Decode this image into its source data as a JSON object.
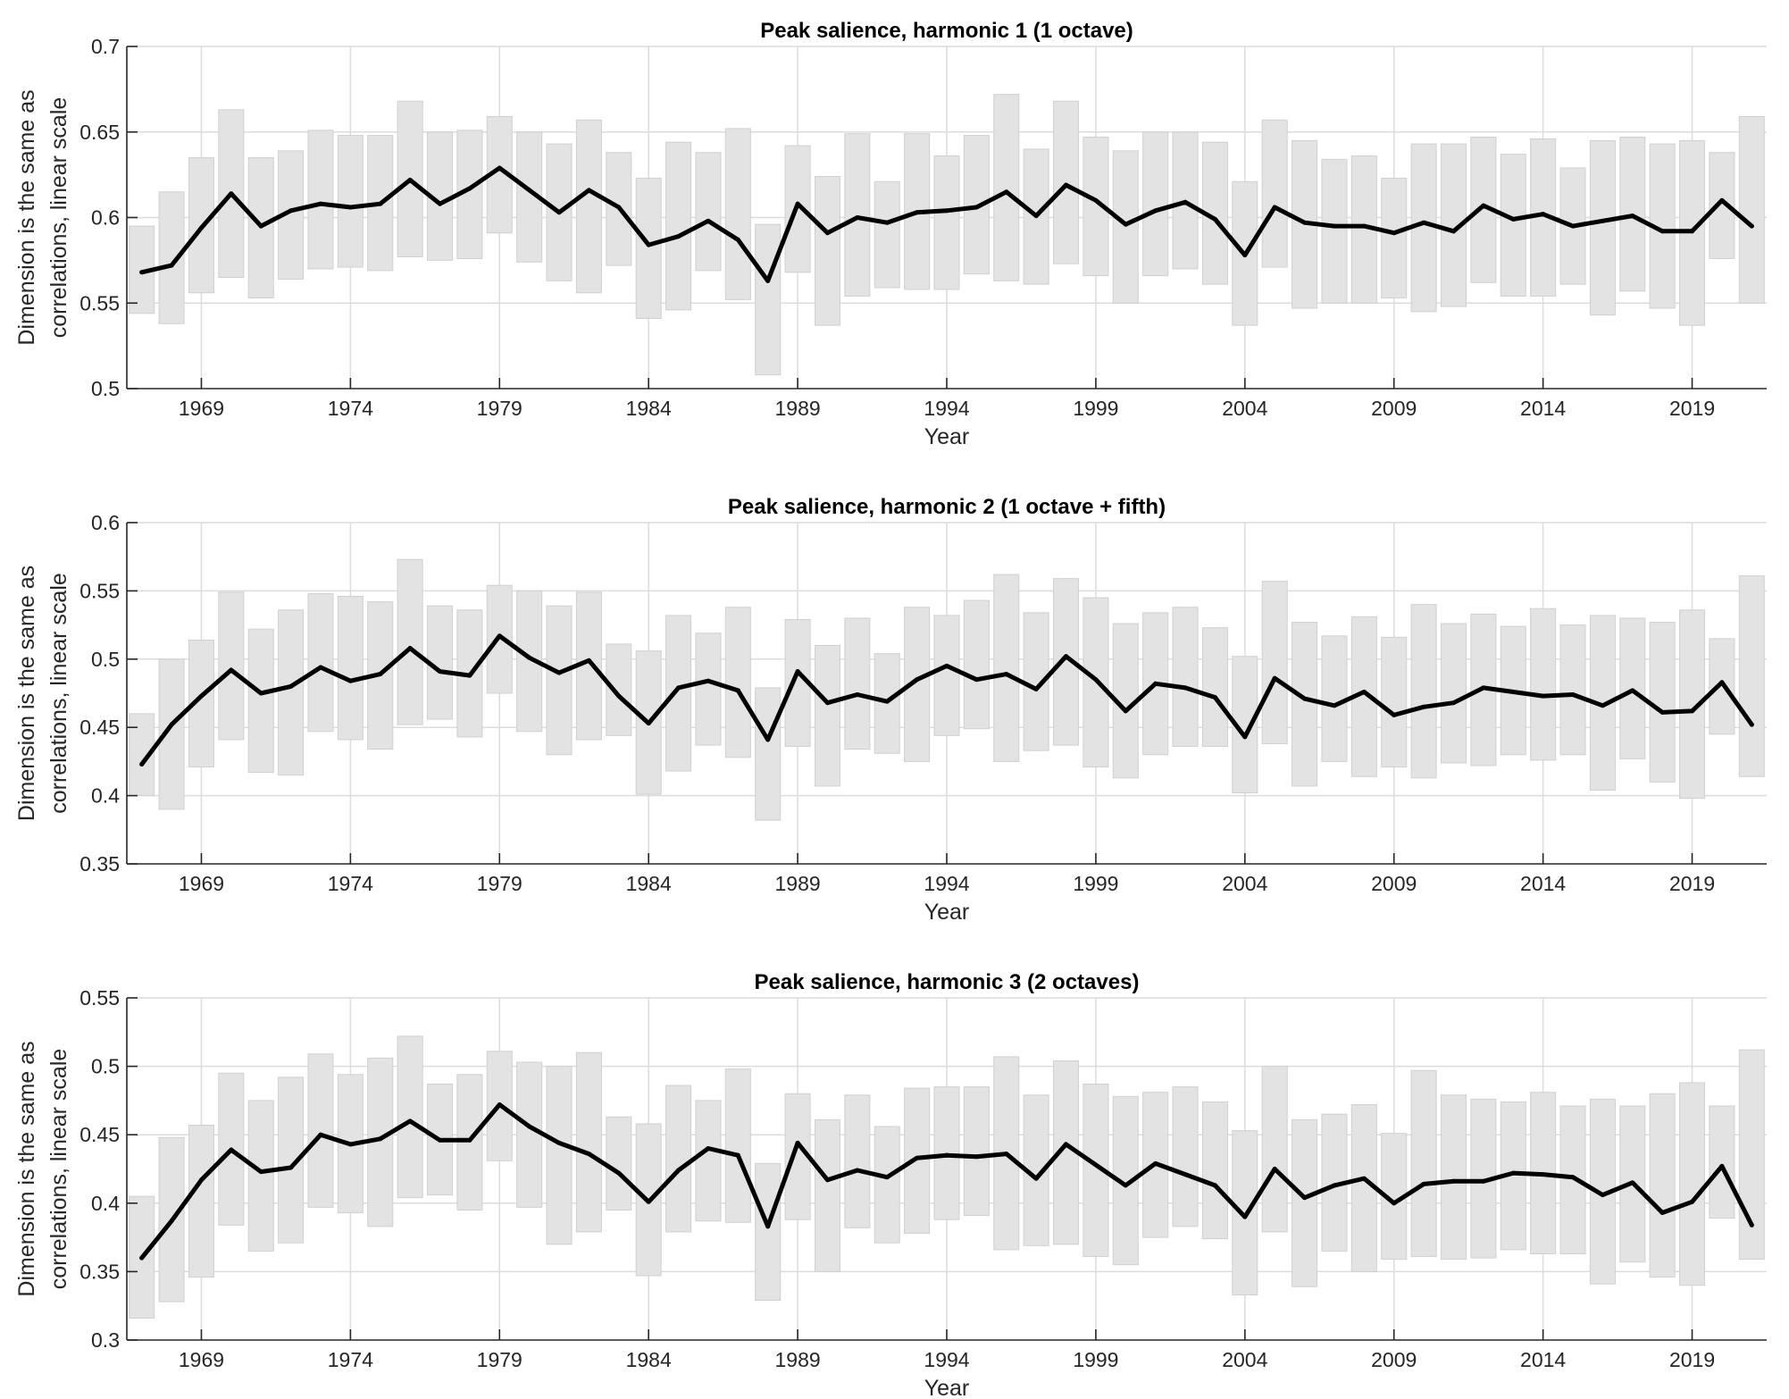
{
  "chart_data": [
    {
      "type": "line",
      "title": "Peak salience, harmonic 1 (1 octave)",
      "xlabel": "Year",
      "ylabel": [
        "Dimension is the same as",
        "correlations, linear scale"
      ],
      "xlim": [
        1966.5,
        2021.5
      ],
      "ylim": [
        0.5,
        0.7
      ],
      "yticks": [
        0.5,
        0.55,
        0.6,
        0.65,
        0.7
      ],
      "ytick_labels": [
        "0.5",
        "0.55",
        "0.6",
        "0.65",
        "0.7"
      ],
      "xticks": [
        1969,
        1974,
        1979,
        1984,
        1989,
        1994,
        1999,
        2004,
        2009,
        2014,
        2019
      ],
      "xtick_labels": [
        "1969",
        "1974",
        "1979",
        "1984",
        "1989",
        "1994",
        "1999",
        "2004",
        "2009",
        "2014",
        "2019"
      ],
      "grid": true,
      "x": [
        1967,
        1968,
        1969,
        1970,
        1971,
        1972,
        1973,
        1974,
        1975,
        1976,
        1977,
        1978,
        1979,
        1980,
        1981,
        1982,
        1983,
        1984,
        1985,
        1986,
        1987,
        1988,
        1989,
        1990,
        1991,
        1992,
        1993,
        1994,
        1995,
        1996,
        1997,
        1998,
        1999,
        2000,
        2001,
        2002,
        2003,
        2004,
        2005,
        2006,
        2007,
        2008,
        2009,
        2010,
        2011,
        2012,
        2013,
        2014,
        2015,
        2016,
        2017,
        2018,
        2019,
        2020,
        2021
      ],
      "values": [
        0.568,
        0.572,
        0.594,
        0.614,
        0.595,
        0.604,
        0.608,
        0.606,
        0.608,
        0.622,
        0.608,
        0.617,
        0.629,
        0.616,
        0.603,
        0.616,
        0.606,
        0.584,
        0.589,
        0.598,
        0.587,
        0.563,
        0.608,
        0.591,
        0.6,
        0.597,
        0.603,
        0.604,
        0.606,
        0.615,
        0.601,
        0.619,
        0.61,
        0.596,
        0.604,
        0.609,
        0.599,
        0.578,
        0.606,
        0.597,
        0.595,
        0.595,
        0.591,
        0.597,
        0.592,
        0.607,
        0.599,
        0.602,
        0.595,
        0.598,
        0.601,
        0.592,
        0.592,
        0.61,
        0.595
      ],
      "lower": [
        0.544,
        0.538,
        0.556,
        0.565,
        0.553,
        0.564,
        0.57,
        0.571,
        0.569,
        0.577,
        0.575,
        0.576,
        0.591,
        0.574,
        0.563,
        0.556,
        0.572,
        0.541,
        0.546,
        0.569,
        0.552,
        0.508,
        0.568,
        0.537,
        0.554,
        0.559,
        0.558,
        0.558,
        0.567,
        0.563,
        0.561,
        0.573,
        0.566,
        0.55,
        0.566,
        0.57,
        0.561,
        0.537,
        0.571,
        0.547,
        0.55,
        0.55,
        0.553,
        0.545,
        0.548,
        0.562,
        0.554,
        0.554,
        0.561,
        0.543,
        0.557,
        0.547,
        0.537,
        0.576,
        0.55
      ],
      "upper": [
        0.595,
        0.615,
        0.635,
        0.663,
        0.635,
        0.639,
        0.651,
        0.648,
        0.648,
        0.668,
        0.65,
        0.651,
        0.659,
        0.65,
        0.643,
        0.657,
        0.638,
        0.623,
        0.644,
        0.638,
        0.652,
        0.596,
        0.642,
        0.624,
        0.649,
        0.621,
        0.649,
        0.636,
        0.648,
        0.672,
        0.64,
        0.668,
        0.647,
        0.639,
        0.65,
        0.65,
        0.644,
        0.621,
        0.657,
        0.645,
        0.634,
        0.636,
        0.623,
        0.643,
        0.643,
        0.647,
        0.637,
        0.646,
        0.629,
        0.645,
        0.647,
        0.643,
        0.645,
        0.638,
        0.659
      ]
    },
    {
      "type": "line",
      "title": "Peak salience, harmonic 2 (1 octave + fifth)",
      "xlabel": "Year",
      "ylabel": [
        "Dimension is the same as",
        "correlations, linear scale"
      ],
      "xlim": [
        1966.5,
        2021.5
      ],
      "ylim": [
        0.35,
        0.6
      ],
      "yticks": [
        0.35,
        0.4,
        0.45,
        0.5,
        0.55,
        0.6
      ],
      "ytick_labels": [
        "0.35",
        "0.4",
        "0.45",
        "0.5",
        "0.55",
        "0.6"
      ],
      "xticks": [
        1969,
        1974,
        1979,
        1984,
        1989,
        1994,
        1999,
        2004,
        2009,
        2014,
        2019
      ],
      "xtick_labels": [
        "1969",
        "1974",
        "1979",
        "1984",
        "1989",
        "1994",
        "1999",
        "2004",
        "2009",
        "2014",
        "2019"
      ],
      "grid": true,
      "x": [
        1967,
        1968,
        1969,
        1970,
        1971,
        1972,
        1973,
        1974,
        1975,
        1976,
        1977,
        1978,
        1979,
        1980,
        1981,
        1982,
        1983,
        1984,
        1985,
        1986,
        1987,
        1988,
        1989,
        1990,
        1991,
        1992,
        1993,
        1994,
        1995,
        1996,
        1997,
        1998,
        1999,
        2000,
        2001,
        2002,
        2003,
        2004,
        2005,
        2006,
        2007,
        2008,
        2009,
        2010,
        2011,
        2012,
        2013,
        2014,
        2015,
        2016,
        2017,
        2018,
        2019,
        2020,
        2021
      ],
      "values": [
        0.423,
        0.452,
        0.473,
        0.492,
        0.475,
        0.48,
        0.494,
        0.484,
        0.489,
        0.508,
        0.491,
        0.488,
        0.517,
        0.501,
        0.49,
        0.499,
        0.473,
        0.453,
        0.479,
        0.484,
        0.477,
        0.441,
        0.491,
        0.468,
        0.474,
        0.469,
        0.485,
        0.495,
        0.485,
        0.489,
        0.478,
        0.502,
        0.485,
        0.462,
        0.482,
        0.479,
        0.472,
        0.443,
        0.486,
        0.471,
        0.466,
        0.476,
        0.459,
        0.465,
        0.468,
        0.479,
        0.476,
        0.473,
        0.474,
        0.466,
        0.477,
        0.461,
        0.462,
        0.483,
        0.452
      ],
      "lower": [
        0.4,
        0.39,
        0.421,
        0.441,
        0.417,
        0.415,
        0.447,
        0.441,
        0.434,
        0.452,
        0.456,
        0.443,
        0.475,
        0.447,
        0.43,
        0.441,
        0.444,
        0.401,
        0.418,
        0.437,
        0.428,
        0.382,
        0.436,
        0.407,
        0.434,
        0.431,
        0.425,
        0.444,
        0.449,
        0.425,
        0.433,
        0.437,
        0.421,
        0.413,
        0.43,
        0.436,
        0.436,
        0.402,
        0.438,
        0.407,
        0.425,
        0.414,
        0.421,
        0.413,
        0.424,
        0.422,
        0.43,
        0.426,
        0.43,
        0.404,
        0.427,
        0.41,
        0.398,
        0.445,
        0.414
      ],
      "upper": [
        0.46,
        0.5,
        0.514,
        0.549,
        0.522,
        0.536,
        0.548,
        0.546,
        0.542,
        0.573,
        0.539,
        0.536,
        0.554,
        0.55,
        0.539,
        0.549,
        0.511,
        0.506,
        0.532,
        0.519,
        0.538,
        0.479,
        0.529,
        0.51,
        0.53,
        0.504,
        0.538,
        0.532,
        0.543,
        0.562,
        0.534,
        0.559,
        0.545,
        0.526,
        0.534,
        0.538,
        0.523,
        0.502,
        0.557,
        0.527,
        0.517,
        0.531,
        0.516,
        0.54,
        0.526,
        0.533,
        0.524,
        0.537,
        0.525,
        0.532,
        0.53,
        0.527,
        0.536,
        0.515,
        0.561
      ]
    },
    {
      "type": "line",
      "title": "Peak salience, harmonic 3 (2 octaves)",
      "xlabel": "Year",
      "ylabel": [
        "Dimension is the same as",
        "correlations, linear scale"
      ],
      "xlim": [
        1966.5,
        2021.5
      ],
      "ylim": [
        0.3,
        0.55
      ],
      "yticks": [
        0.3,
        0.35,
        0.4,
        0.45,
        0.5,
        0.55
      ],
      "ytick_labels": [
        "0.3",
        "0.35",
        "0.4",
        "0.45",
        "0.5",
        "0.55"
      ],
      "xticks": [
        1969,
        1974,
        1979,
        1984,
        1989,
        1994,
        1999,
        2004,
        2009,
        2014,
        2019
      ],
      "xtick_labels": [
        "1969",
        "1974",
        "1979",
        "1984",
        "1989",
        "1994",
        "1999",
        "2004",
        "2009",
        "2014",
        "2019"
      ],
      "grid": true,
      "x": [
        1967,
        1968,
        1969,
        1970,
        1971,
        1972,
        1973,
        1974,
        1975,
        1976,
        1977,
        1978,
        1979,
        1980,
        1981,
        1982,
        1983,
        1984,
        1985,
        1986,
        1987,
        1988,
        1989,
        1990,
        1991,
        1992,
        1993,
        1994,
        1995,
        1996,
        1997,
        1998,
        1999,
        2000,
        2001,
        2002,
        2003,
        2004,
        2005,
        2006,
        2007,
        2008,
        2009,
        2010,
        2011,
        2012,
        2013,
        2014,
        2015,
        2016,
        2017,
        2018,
        2019,
        2020,
        2021
      ],
      "values": [
        0.36,
        0.387,
        0.417,
        0.439,
        0.423,
        0.426,
        0.45,
        0.443,
        0.447,
        0.46,
        0.446,
        0.446,
        0.472,
        0.456,
        0.444,
        0.436,
        0.422,
        0.401,
        0.424,
        0.44,
        0.435,
        0.383,
        0.444,
        0.417,
        0.424,
        0.419,
        0.433,
        0.435,
        0.434,
        0.436,
        0.418,
        0.443,
        0.428,
        0.413,
        0.429,
        0.421,
        0.413,
        0.39,
        0.425,
        0.404,
        0.413,
        0.418,
        0.4,
        0.414,
        0.416,
        0.416,
        0.422,
        0.421,
        0.419,
        0.406,
        0.415,
        0.393,
        0.401,
        0.427,
        0.384
      ],
      "lower": [
        0.316,
        0.328,
        0.346,
        0.384,
        0.365,
        0.371,
        0.397,
        0.393,
        0.383,
        0.404,
        0.406,
        0.395,
        0.431,
        0.397,
        0.37,
        0.379,
        0.395,
        0.347,
        0.379,
        0.387,
        0.386,
        0.329,
        0.388,
        0.35,
        0.382,
        0.371,
        0.378,
        0.388,
        0.391,
        0.366,
        0.369,
        0.37,
        0.361,
        0.355,
        0.375,
        0.383,
        0.374,
        0.333,
        0.379,
        0.339,
        0.365,
        0.35,
        0.359,
        0.361,
        0.359,
        0.36,
        0.366,
        0.363,
        0.363,
        0.341,
        0.357,
        0.346,
        0.34,
        0.389,
        0.359
      ],
      "upper": [
        0.405,
        0.448,
        0.457,
        0.495,
        0.475,
        0.492,
        0.509,
        0.494,
        0.506,
        0.522,
        0.487,
        0.494,
        0.511,
        0.503,
        0.5,
        0.51,
        0.463,
        0.458,
        0.486,
        0.475,
        0.498,
        0.429,
        0.48,
        0.461,
        0.479,
        0.456,
        0.484,
        0.485,
        0.485,
        0.507,
        0.479,
        0.504,
        0.487,
        0.478,
        0.481,
        0.485,
        0.474,
        0.453,
        0.5,
        0.461,
        0.465,
        0.472,
        0.451,
        0.497,
        0.479,
        0.476,
        0.474,
        0.481,
        0.471,
        0.476,
        0.471,
        0.48,
        0.488,
        0.471,
        0.512
      ]
    }
  ]
}
